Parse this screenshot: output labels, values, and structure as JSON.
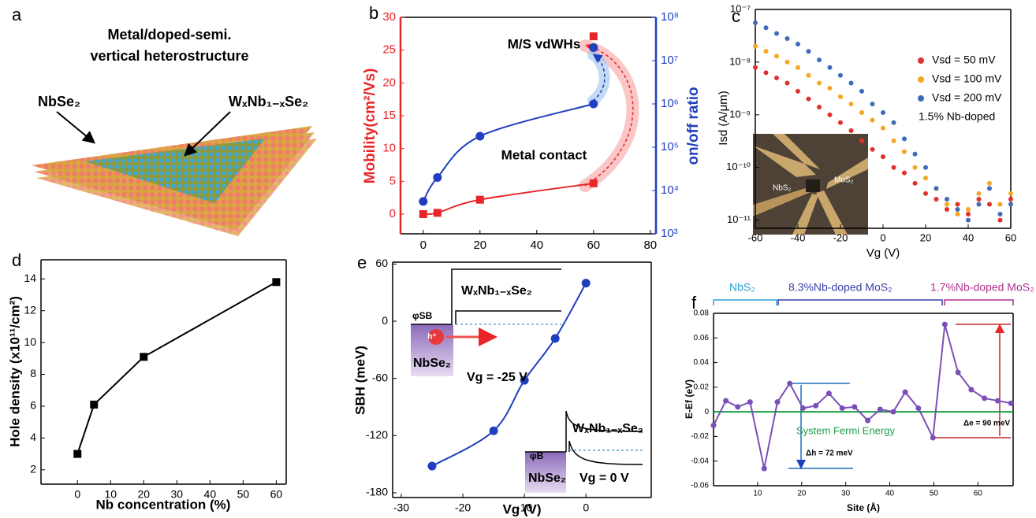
{
  "panel_a": {
    "label": "a",
    "title": [
      "Metal/doped-semi.",
      "vertical heterostructure"
    ],
    "labels": [
      "NbSe₂",
      "WₓNb₁₋ₓSe₂"
    ]
  },
  "chart_data": [
    {
      "type": "line",
      "panel_label": "b",
      "ylabel": "Mobility(cm²/Vs)",
      "y2label": "on/off ratio",
      "xlim": [
        -8,
        82
      ],
      "xticks": [
        0,
        20,
        40,
        60,
        80
      ],
      "ylim": [
        -3,
        30
      ],
      "yticks": [
        0,
        5,
        10,
        15,
        20,
        25,
        30
      ],
      "y2lim": [
        1000,
        100000000
      ],
      "y2log": true,
      "y2ticks": [
        {
          "value": 1000,
          "label": "10³"
        },
        {
          "value": 10000,
          "label": "10⁴"
        },
        {
          "value": 100000,
          "label": "10⁵"
        },
        {
          "value": 1000000,
          "label": "10⁶"
        },
        {
          "value": 10000000,
          "label": "10⁷"
        },
        {
          "value": 100000000,
          "label": "10⁸"
        }
      ],
      "series": [
        {
          "color": "#e8262a",
          "marker": "square",
          "line": true,
          "smooth": true,
          "x": [
            0,
            5,
            20,
            60
          ],
          "values": [
            0,
            0.2,
            2.2,
            4.7
          ]
        },
        {
          "color": "#1f3fbf",
          "marker": "circle",
          "line": true,
          "smooth": true,
          "axis": "y2",
          "x": [
            0,
            5,
            20,
            60
          ],
          "values": [
            5600,
            20000,
            180000,
            1000000
          ]
        },
        {
          "color": "#e8262a",
          "marker": "square",
          "line": false,
          "x": [
            60
          ],
          "values": [
            27.1
          ]
        },
        {
          "color": "#1f3fbf",
          "marker": "circle",
          "line": false,
          "axis": "y2",
          "x": [
            60
          ],
          "values": [
            20000000
          ]
        }
      ],
      "annotations": [
        "M/S vdWHs",
        "Metal contact"
      ]
    },
    {
      "type": "scatter",
      "panel_label": "c",
      "xlabel": "Vg (V)",
      "ylabel": "Isd (A/μm)",
      "xlim": [
        -60,
        60
      ],
      "xticks": [
        -60,
        -40,
        -20,
        0,
        20,
        40,
        60
      ],
      "ylim": [
        7e-12,
        1e-07
      ],
      "ylog": true,
      "yticks": [
        {
          "value": 1e-11,
          "label": "10⁻¹¹"
        },
        {
          "value": 1e-10,
          "label": "10⁻¹⁰"
        },
        {
          "value": 1e-09,
          "label": "10⁻⁹"
        },
        {
          "value": 1e-08,
          "label": "10⁻⁸"
        },
        {
          "value": 1e-07,
          "label": "10⁻⁷"
        }
      ],
      "x": [
        -60,
        -55,
        -50,
        -45,
        -40,
        -35,
        -30,
        -25,
        -20,
        -15,
        -10,
        -5,
        0,
        5,
        10,
        15,
        20,
        25,
        30,
        35,
        40,
        45,
        50,
        55,
        60
      ],
      "series": [
        {
          "name": "Vsd = 50 mV",
          "color": "#e0312f",
          "values": [
            7.9e-09,
            6.3e-09,
            5e-09,
            4e-09,
            2.8e-09,
            2e-09,
            1.4e-09,
            1e-09,
            7.1e-10,
            5e-10,
            3.2e-10,
            2.2e-10,
            1.6e-10,
            1e-10,
            7.9e-11,
            5e-11,
            3.2e-11,
            2.5e-11,
            1.6e-11,
            2e-11,
            1.3e-11,
            2.5e-11,
            2e-11,
            1e-11,
            2.5e-11
          ]
        },
        {
          "name": "Vsd = 100 mV",
          "color": "#f5a623",
          "values": [
            2e-08,
            1.6e-08,
            1.3e-08,
            1e-08,
            7.9e-09,
            5.6e-09,
            4e-09,
            3.2e-09,
            2.2e-09,
            1.6e-09,
            1.1e-09,
            7.9e-10,
            5.6e-10,
            3.2e-10,
            2e-10,
            1e-10,
            6.3e-11,
            4e-11,
            2e-11,
            1.3e-11,
            1.6e-11,
            3.2e-11,
            5e-11,
            2e-11,
            3.2e-11
          ]
        },
        {
          "name": "Vsd = 200 mV",
          "color": "#3d6cb8",
          "values": [
            5.6e-08,
            4.5e-08,
            3.5e-08,
            2.8e-08,
            2.2e-08,
            1.6e-08,
            1.1e-08,
            7.9e-09,
            5.6e-09,
            4e-09,
            2.8e-09,
            1.6e-09,
            1.1e-09,
            7.1e-10,
            3.5e-10,
            1.8e-10,
            1e-10,
            4e-11,
            2.5e-11,
            1.6e-11,
            1e-11,
            2e-11,
            4e-11,
            1.3e-11,
            2e-11
          ]
        }
      ],
      "annotations": [
        "1.5% Nb-doped",
        "NbS₂",
        "MoS₂"
      ]
    },
    {
      "type": "line",
      "panel_label": "d",
      "xlabel": "Nb concentration (%)",
      "ylabel": "Hole density (x10¹¹/cm²)",
      "xlim": [
        -11,
        63
      ],
      "xticks": [
        0,
        10,
        20,
        30,
        40,
        50,
        60
      ],
      "ylim": [
        1.1,
        15.2
      ],
      "yticks": [
        2,
        4,
        6,
        8,
        10,
        12,
        14
      ],
      "x": [
        0,
        5,
        20,
        60
      ],
      "series": [
        {
          "color": "#000000",
          "marker": "square",
          "line": true,
          "values": [
            3.0,
            6.1,
            9.1,
            13.8
          ]
        }
      ],
      "annotations": []
    },
    {
      "type": "line",
      "panel_label": "e",
      "xlabel": "Vg (V)",
      "ylabel": "SBH (meV)",
      "xlim": [
        -31.4,
        10.6
      ],
      "xticks": [
        -30,
        -20,
        -10,
        0
      ],
      "ylim": [
        -185,
        62
      ],
      "yticks": [
        -180,
        -120,
        -60,
        0,
        60
      ],
      "x": [
        -25,
        -15,
        -10,
        -5,
        0
      ],
      "series": [
        {
          "color": "#1f3fbf",
          "marker": "circle",
          "line": true,
          "smooth": true,
          "values": [
            -152,
            -115,
            -62,
            -18,
            40
          ]
        }
      ],
      "annotations": [
        "WₓNb₁₋ₓSe₂",
        "φSB",
        "h⁺",
        "NbSe₂",
        "Vg = -25 V",
        "WₓNb₁₋ₓSe₂",
        "φB",
        "NbSe₂",
        "Vg = 0 V"
      ]
    },
    {
      "type": "line",
      "panel_label": "f",
      "xlabel": "Site (Å)",
      "ylabel": "E-Ef (eV)",
      "xlim": [
        0,
        68
      ],
      "xticks": [
        10,
        20,
        30,
        40,
        50,
        60
      ],
      "ylim": [
        -0.06,
        0.08
      ],
      "yticks": [
        -0.06,
        -0.04,
        -0.02,
        0,
        0.02,
        0.04,
        0.06,
        0.08
      ],
      "hline": 0,
      "hline_color": "#1e9e4a",
      "x": [
        0,
        2.8,
        5.5,
        8.3,
        11.5,
        14.5,
        17.3,
        20.3,
        23.2,
        26.2,
        29.2,
        32,
        35,
        37.8,
        40.8,
        43.5,
        46.5,
        49.8,
        52.5,
        55.5,
        58.5,
        61.5,
        64.5,
        67.5
      ],
      "series": [
        {
          "color": "#7b4fb5",
          "marker": "circle",
          "line": true,
          "values": [
            -0.011,
            0.009,
            0.004,
            0.008,
            -0.046,
            0.008,
            0.023,
            0.003,
            0.005,
            0.015,
            0.003,
            0.004,
            -0.007,
            0.002,
            0,
            0.016,
            0.003,
            -0.021,
            0.071,
            0.032,
            0.018,
            0.011,
            0.009,
            0.007
          ]
        }
      ],
      "annotations": [
        "System Fermi Energy",
        "Δh = 72 meV",
        "Δe = 90 meV",
        "NbS₂",
        "8.3%Nb-doped MoS₂",
        "1.7%Nb-doped MoS₂"
      ]
    }
  ]
}
